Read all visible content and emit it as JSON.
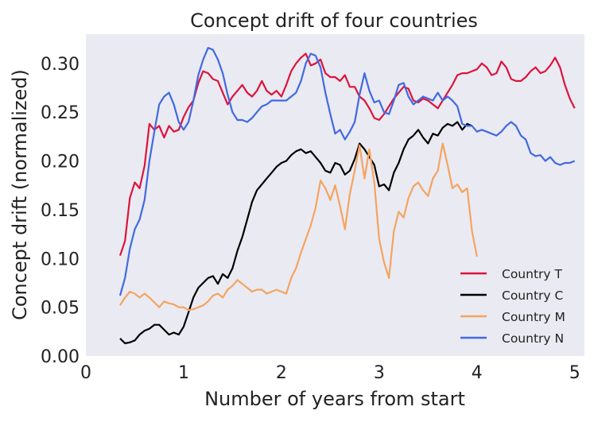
{
  "chart_data": {
    "type": "line",
    "title": "Concept drift of four countries",
    "xlabel": "Number of years from start",
    "ylabel": "Concept drift (normalized)",
    "xlim": [
      0,
      5.1
    ],
    "ylim": [
      0,
      0.33
    ],
    "xticks": [
      "0",
      "1",
      "2",
      "3",
      "4",
      "5"
    ],
    "yticks": [
      "0.00",
      "0.05",
      "0.10",
      "0.15",
      "0.20",
      "0.25",
      "0.30"
    ],
    "grid": false,
    "legend_position": "bottom-right",
    "series": [
      {
        "name": "Country T",
        "color": "#dc143c",
        "x": [
          0.35,
          0.4,
          0.45,
          0.5,
          0.55,
          0.6,
          0.65,
          0.7,
          0.75,
          0.8,
          0.85,
          0.9,
          0.95,
          1.0,
          1.05,
          1.1,
          1.15,
          1.2,
          1.25,
          1.3,
          1.35,
          1.4,
          1.45,
          1.5,
          1.55,
          1.6,
          1.65,
          1.7,
          1.75,
          1.8,
          1.85,
          1.9,
          1.95,
          2.0,
          2.05,
          2.1,
          2.15,
          2.2,
          2.25,
          2.3,
          2.35,
          2.4,
          2.45,
          2.5,
          2.55,
          2.6,
          2.65,
          2.7,
          2.75,
          2.8,
          2.85,
          2.9,
          2.95,
          3.0,
          3.05,
          3.1,
          3.15,
          3.2,
          3.25,
          3.3,
          3.35,
          3.4,
          3.45,
          3.5,
          3.55,
          3.6,
          3.65,
          3.7,
          3.75,
          3.8,
          3.85,
          3.9,
          3.95,
          4.0,
          4.05,
          4.1,
          4.15,
          4.2,
          4.25,
          4.3,
          4.35,
          4.4,
          4.45,
          4.5,
          4.55,
          4.6,
          4.65,
          4.7,
          4.75,
          4.8,
          4.85,
          4.9,
          4.95,
          5.0
        ],
        "values": [
          0.103,
          0.118,
          0.162,
          0.178,
          0.172,
          0.195,
          0.238,
          0.232,
          0.236,
          0.224,
          0.236,
          0.23,
          0.232,
          0.245,
          0.255,
          0.262,
          0.28,
          0.292,
          0.29,
          0.284,
          0.282,
          0.27,
          0.258,
          0.266,
          0.272,
          0.278,
          0.27,
          0.266,
          0.272,
          0.282,
          0.272,
          0.268,
          0.272,
          0.266,
          0.278,
          0.292,
          0.3,
          0.306,
          0.31,
          0.298,
          0.3,
          0.304,
          0.29,
          0.286,
          0.286,
          0.282,
          0.288,
          0.276,
          0.276,
          0.266,
          0.262,
          0.254,
          0.244,
          0.242,
          0.248,
          0.256,
          0.264,
          0.27,
          0.276,
          0.274,
          0.262,
          0.26,
          0.264,
          0.262,
          0.258,
          0.254,
          0.262,
          0.27,
          0.278,
          0.288,
          0.29,
          0.29,
          0.292,
          0.294,
          0.3,
          0.296,
          0.288,
          0.29,
          0.302,
          0.296,
          0.284,
          0.282,
          0.282,
          0.286,
          0.292,
          0.296,
          0.29,
          0.292,
          0.298,
          0.306,
          0.296,
          0.278,
          0.264,
          0.254
        ]
      },
      {
        "name": "Country C",
        "color": "#000000",
        "x": [
          0.35,
          0.4,
          0.45,
          0.5,
          0.55,
          0.6,
          0.65,
          0.7,
          0.75,
          0.8,
          0.85,
          0.9,
          0.95,
          1.0,
          1.05,
          1.1,
          1.15,
          1.2,
          1.25,
          1.3,
          1.35,
          1.4,
          1.45,
          1.5,
          1.55,
          1.6,
          1.65,
          1.7,
          1.75,
          1.8,
          1.85,
          1.9,
          1.95,
          2.0,
          2.05,
          2.1,
          2.15,
          2.2,
          2.25,
          2.3,
          2.35,
          2.4,
          2.45,
          2.5,
          2.55,
          2.6,
          2.65,
          2.7,
          2.75,
          2.8,
          2.85,
          2.9,
          2.95,
          3.0,
          3.05,
          3.1,
          3.15,
          3.2,
          3.25,
          3.3,
          3.35,
          3.4,
          3.45,
          3.5,
          3.55,
          3.6,
          3.65,
          3.7,
          3.75,
          3.8,
          3.85,
          3.9,
          3.95
        ],
        "values": [
          0.018,
          0.013,
          0.014,
          0.016,
          0.022,
          0.026,
          0.028,
          0.032,
          0.032,
          0.027,
          0.022,
          0.024,
          0.022,
          0.03,
          0.045,
          0.06,
          0.07,
          0.075,
          0.08,
          0.082,
          0.074,
          0.084,
          0.08,
          0.09,
          0.108,
          0.122,
          0.14,
          0.158,
          0.17,
          0.176,
          0.182,
          0.188,
          0.194,
          0.198,
          0.2,
          0.206,
          0.21,
          0.212,
          0.208,
          0.21,
          0.204,
          0.198,
          0.19,
          0.188,
          0.198,
          0.196,
          0.186,
          0.19,
          0.202,
          0.218,
          0.212,
          0.204,
          0.196,
          0.174,
          0.176,
          0.17,
          0.188,
          0.198,
          0.212,
          0.222,
          0.226,
          0.232,
          0.224,
          0.218,
          0.228,
          0.226,
          0.234,
          0.238,
          0.236,
          0.24,
          0.232,
          0.238,
          0.236
        ]
      },
      {
        "name": "Country M",
        "color": "#f4a460",
        "x": [
          0.35,
          0.4,
          0.45,
          0.5,
          0.55,
          0.6,
          0.65,
          0.7,
          0.75,
          0.8,
          0.85,
          0.9,
          0.95,
          1.0,
          1.05,
          1.1,
          1.15,
          1.2,
          1.25,
          1.3,
          1.35,
          1.4,
          1.45,
          1.5,
          1.55,
          1.6,
          1.65,
          1.7,
          1.75,
          1.8,
          1.85,
          1.9,
          1.95,
          2.0,
          2.05,
          2.1,
          2.15,
          2.2,
          2.25,
          2.3,
          2.35,
          2.4,
          2.45,
          2.5,
          2.55,
          2.6,
          2.65,
          2.7,
          2.75,
          2.8,
          2.85,
          2.9,
          2.95,
          3.0,
          3.05,
          3.1,
          3.15,
          3.2,
          3.25,
          3.3,
          3.35,
          3.4,
          3.45,
          3.5,
          3.55,
          3.6,
          3.65,
          3.7,
          3.75,
          3.8,
          3.85,
          3.9,
          3.95,
          4.0
        ],
        "values": [
          0.052,
          0.06,
          0.066,
          0.064,
          0.06,
          0.064,
          0.06,
          0.055,
          0.05,
          0.056,
          0.054,
          0.053,
          0.05,
          0.05,
          0.047,
          0.048,
          0.05,
          0.052,
          0.056,
          0.062,
          0.064,
          0.06,
          0.068,
          0.072,
          0.078,
          0.074,
          0.07,
          0.066,
          0.068,
          0.068,
          0.064,
          0.066,
          0.068,
          0.066,
          0.064,
          0.08,
          0.09,
          0.106,
          0.12,
          0.134,
          0.152,
          0.18,
          0.172,
          0.16,
          0.175,
          0.154,
          0.13,
          0.166,
          0.19,
          0.216,
          0.182,
          0.212,
          0.178,
          0.12,
          0.096,
          0.08,
          0.128,
          0.148,
          0.142,
          0.162,
          0.174,
          0.178,
          0.17,
          0.164,
          0.182,
          0.19,
          0.218,
          0.196,
          0.172,
          0.176,
          0.168,
          0.172,
          0.128,
          0.102
        ]
      },
      {
        "name": "Country N",
        "color": "#4169e1",
        "x": [
          0.35,
          0.4,
          0.45,
          0.5,
          0.55,
          0.6,
          0.65,
          0.7,
          0.75,
          0.8,
          0.85,
          0.9,
          0.95,
          1.0,
          1.05,
          1.1,
          1.15,
          1.2,
          1.25,
          1.3,
          1.35,
          1.4,
          1.45,
          1.5,
          1.55,
          1.6,
          1.65,
          1.7,
          1.75,
          1.8,
          1.85,
          1.9,
          1.95,
          2.0,
          2.05,
          2.1,
          2.15,
          2.2,
          2.25,
          2.3,
          2.35,
          2.4,
          2.45,
          2.5,
          2.55,
          2.6,
          2.65,
          2.7,
          2.75,
          2.8,
          2.85,
          2.9,
          2.95,
          3.0,
          3.05,
          3.1,
          3.15,
          3.2,
          3.25,
          3.3,
          3.35,
          3.4,
          3.45,
          3.5,
          3.55,
          3.6,
          3.65,
          3.7,
          3.75,
          3.8,
          3.85,
          3.9,
          3.95,
          4.0,
          4.05,
          4.1,
          4.15,
          4.2,
          4.25,
          4.3,
          4.35,
          4.4,
          4.45,
          4.5,
          4.55,
          4.6,
          4.65,
          4.7,
          4.75,
          4.8,
          4.85,
          4.9,
          4.95,
          5.0
        ],
        "values": [
          0.062,
          0.08,
          0.11,
          0.13,
          0.14,
          0.16,
          0.2,
          0.23,
          0.258,
          0.266,
          0.27,
          0.258,
          0.24,
          0.232,
          0.24,
          0.262,
          0.288,
          0.304,
          0.316,
          0.314,
          0.304,
          0.29,
          0.268,
          0.25,
          0.242,
          0.242,
          0.24,
          0.244,
          0.25,
          0.256,
          0.258,
          0.262,
          0.262,
          0.262,
          0.262,
          0.266,
          0.27,
          0.282,
          0.3,
          0.31,
          0.308,
          0.296,
          0.27,
          0.248,
          0.228,
          0.232,
          0.222,
          0.23,
          0.24,
          0.268,
          0.29,
          0.272,
          0.26,
          0.262,
          0.25,
          0.248,
          0.262,
          0.278,
          0.28,
          0.266,
          0.258,
          0.262,
          0.266,
          0.264,
          0.262,
          0.27,
          0.262,
          0.266,
          0.262,
          0.256,
          0.238,
          0.236,
          0.236,
          0.23,
          0.232,
          0.23,
          0.228,
          0.226,
          0.23,
          0.236,
          0.24,
          0.236,
          0.226,
          0.222,
          0.208,
          0.205,
          0.206,
          0.2,
          0.204,
          0.198,
          0.196,
          0.198,
          0.198,
          0.2
        ]
      }
    ]
  }
}
